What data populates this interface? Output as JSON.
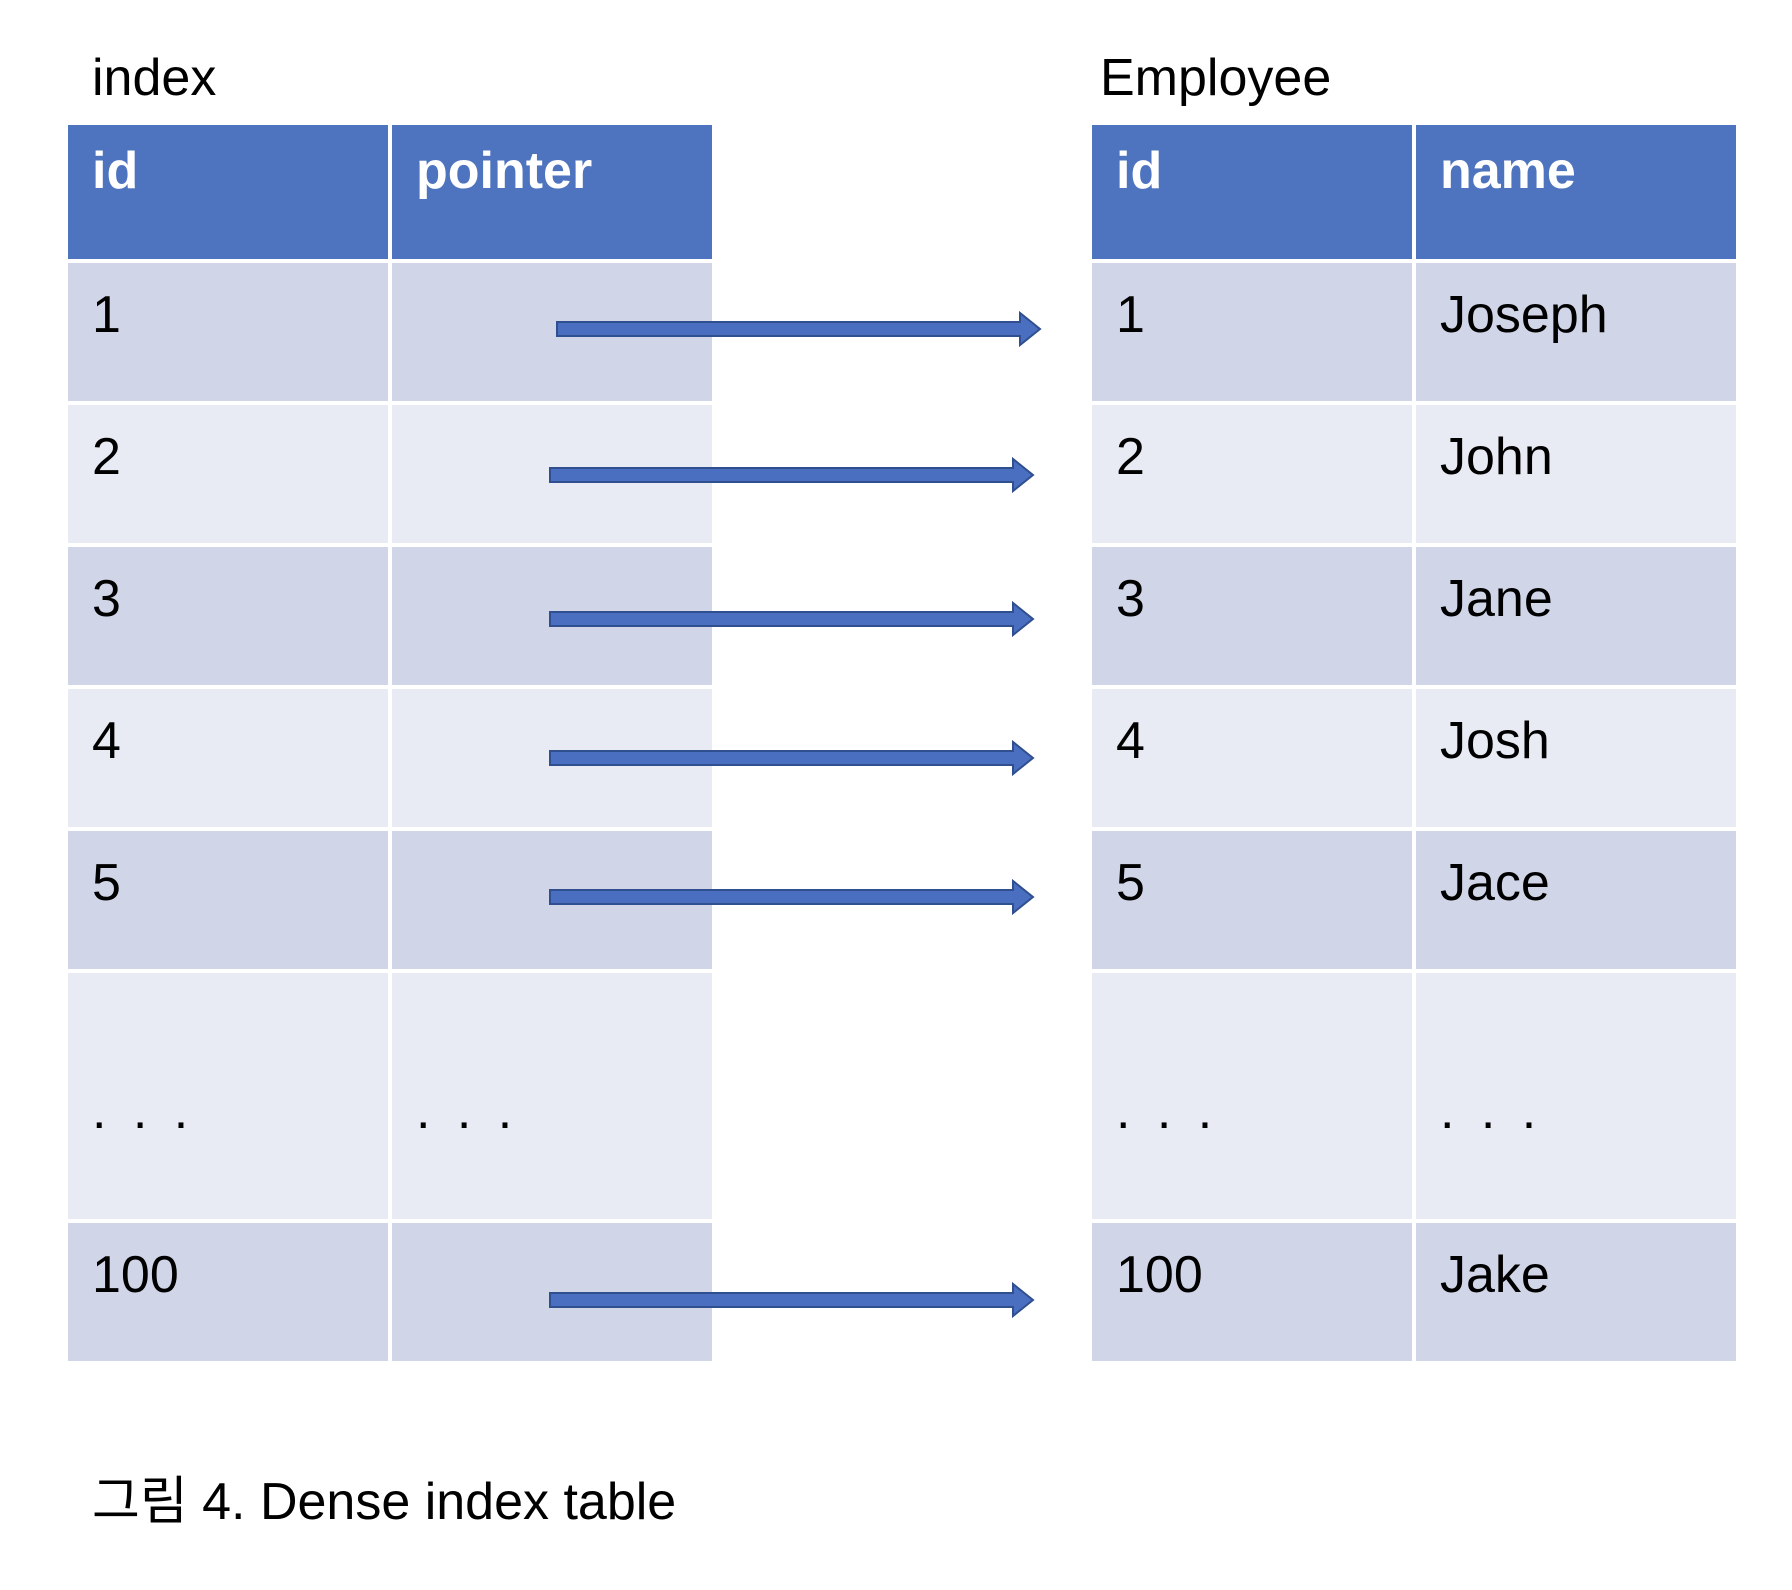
{
  "index_table": {
    "title": "index",
    "columns": [
      "id",
      "pointer"
    ],
    "rows": [
      {
        "id": "1",
        "pointer": ""
      },
      {
        "id": "2",
        "pointer": ""
      },
      {
        "id": "3",
        "pointer": ""
      },
      {
        "id": "4",
        "pointer": ""
      },
      {
        "id": "5",
        "pointer": ""
      },
      {
        "id": ". . .",
        "pointer": ". . ."
      },
      {
        "id": "100",
        "pointer": ""
      }
    ]
  },
  "employee_table": {
    "title": "Employee",
    "columns": [
      "id",
      "name"
    ],
    "rows": [
      {
        "id": "1",
        "name": "Joseph"
      },
      {
        "id": "2",
        "name": "John"
      },
      {
        "id": "3",
        "name": "Jane"
      },
      {
        "id": "4",
        "name": "Josh"
      },
      {
        "id": "5",
        "name": "Jace"
      },
      {
        "id": ". . .",
        "name": ". . ."
      },
      {
        "id": "100",
        "name": "Jake"
      }
    ]
  },
  "pointers": [
    {
      "from": "1",
      "to": "1"
    },
    {
      "from": "2",
      "to": "2"
    },
    {
      "from": "3",
      "to": "3"
    },
    {
      "from": "4",
      "to": "4"
    },
    {
      "from": "5",
      "to": "5"
    },
    {
      "from": "100",
      "to": "100"
    }
  ],
  "colors": {
    "header": "#4e74bf",
    "row_dark": "#d0d6e8",
    "row_light": "#e8ebf4",
    "arrow_fill": "#4a6fc1",
    "arrow_stroke": "#2f4f8f"
  },
  "caption": "그림 4. Dense index table"
}
